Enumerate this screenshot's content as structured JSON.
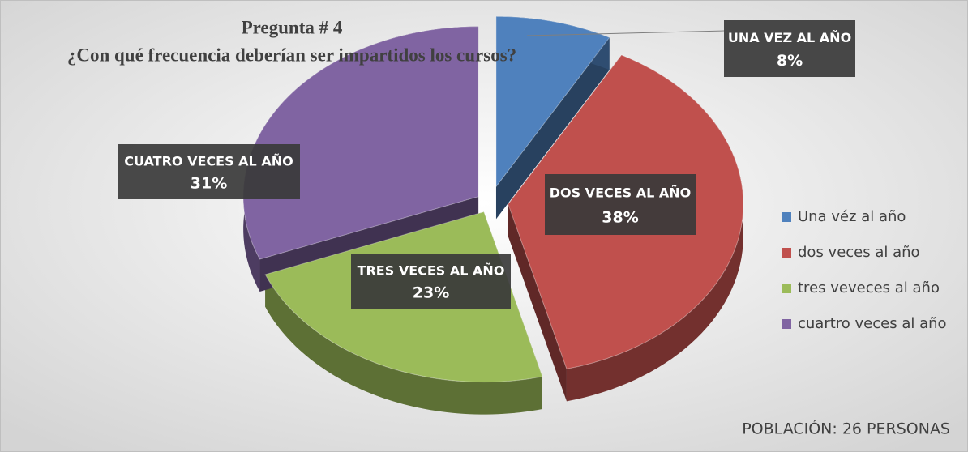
{
  "chart_data": {
    "type": "pie",
    "title": "Pregunta # 4",
    "subtitle": "¿Con qué frecuencia deberían  ser impartidos los cursos?",
    "annotation": "POBLACIÓN: 26 PERSONAS",
    "categories": [
      "Una véz al año",
      "dos veces al año",
      "tres veveces al año",
      "cuartro veces al año"
    ],
    "label_names": [
      "UNA VEZ AL AÑO",
      "DOS VECES AL AÑO",
      "TRES VECES AL AÑO",
      "CUATRO VECES AL AÑO"
    ],
    "values": [
      8,
      38,
      23,
      31
    ],
    "value_labels": [
      "8%",
      "38%",
      "23%",
      "31%"
    ],
    "colors": [
      "#4f81bd",
      "#c0504d",
      "#9bbb59",
      "#8064a2"
    ],
    "legend": "right"
  }
}
